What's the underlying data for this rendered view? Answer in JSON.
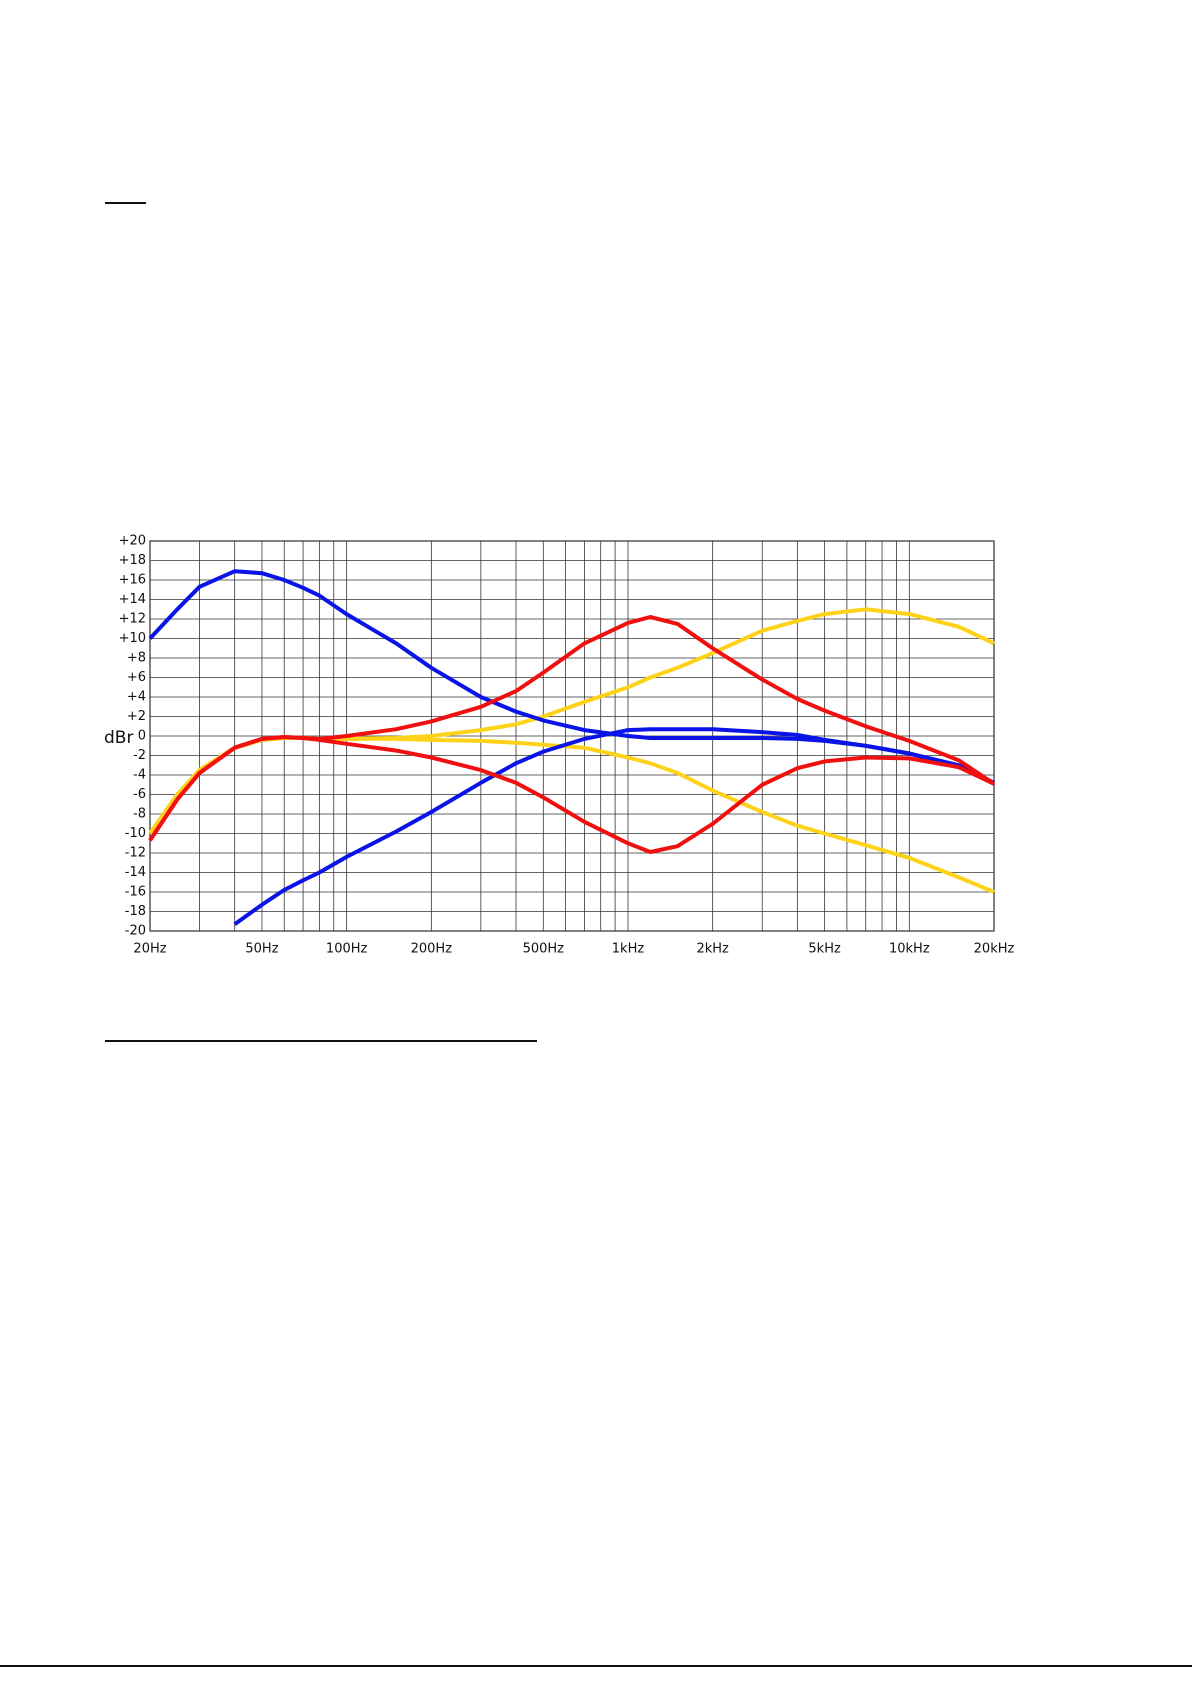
{
  "chart_data": {
    "type": "line",
    "ylabel": "dBr",
    "xscale": "log",
    "grid": true,
    "xlim": [
      20,
      20000
    ],
    "ylim": [
      -20,
      20
    ],
    "xticks": [
      {
        "value": 20,
        "label": "20Hz"
      },
      {
        "value": 50,
        "label": "50Hz"
      },
      {
        "value": 100,
        "label": "100Hz"
      },
      {
        "value": 200,
        "label": "200Hz"
      },
      {
        "value": 500,
        "label": "500Hz"
      },
      {
        "value": 1000,
        "label": "1kHz"
      },
      {
        "value": 2000,
        "label": "2kHz"
      },
      {
        "value": 5000,
        "label": "5kHz"
      },
      {
        "value": 10000,
        "label": "10kHz"
      },
      {
        "value": 20000,
        "label": "20kHz"
      }
    ],
    "xminor": [
      30,
      40,
      60,
      70,
      80,
      90,
      300,
      400,
      600,
      700,
      800,
      900,
      3000,
      4000,
      6000,
      7000,
      8000,
      9000
    ],
    "yticks": [
      {
        "value": 20,
        "label": "+20"
      },
      {
        "value": 18,
        "label": "+18"
      },
      {
        "value": 16,
        "label": "+16"
      },
      {
        "value": 14,
        "label": "+14"
      },
      {
        "value": 12,
        "label": "+12"
      },
      {
        "value": 10,
        "label": "+10"
      },
      {
        "value": 8,
        "label": "+8"
      },
      {
        "value": 6,
        "label": "+6"
      },
      {
        "value": 4,
        "label": "+4"
      },
      {
        "value": 2,
        "label": "+2"
      },
      0,
      -2,
      -4,
      -6,
      -8,
      -10,
      -12,
      -14,
      -16,
      -18,
      -20
    ],
    "x": [
      20,
      25,
      30,
      40,
      50,
      60,
      70,
      80,
      100,
      150,
      200,
      300,
      400,
      500,
      700,
      1000,
      1200,
      1500,
      2000,
      3000,
      4000,
      5000,
      7000,
      10000,
      15000,
      20000
    ],
    "series": [
      {
        "color": "#ffd21a",
        "values": [
          -10,
          -6,
          -3.5,
          -1.2,
          -0.4,
          -0.2,
          -0.2,
          -0.3,
          -0.3,
          -0.2,
          0,
          0.6,
          1.2,
          2,
          3.5,
          5,
          6,
          7,
          8.5,
          10.8,
          11.8,
          12.5,
          13,
          12.5,
          11.2,
          9.5
        ]
      },
      {
        "color": "#ffd21a",
        "values": [
          -10,
          -6,
          -3.5,
          -1.2,
          -0.4,
          -0.2,
          -0.2,
          -0.3,
          -0.3,
          -0.3,
          -0.4,
          -0.5,
          -0.7,
          -0.9,
          -1.2,
          -2.2,
          -2.8,
          -3.8,
          -5.6,
          -7.8,
          -9.2,
          -10,
          -11.2,
          -12.5,
          -14.5,
          -16
        ]
      },
      {
        "color": "#0a14e6",
        "values": [
          10,
          13,
          15.3,
          16.9,
          16.7,
          16,
          15.2,
          14.4,
          12.5,
          9.5,
          7,
          4,
          2.5,
          1.6,
          0.6,
          0,
          -0.2,
          -0.2,
          -0.2,
          -0.2,
          -0.3,
          -0.5,
          -1,
          -1.8,
          -3,
          -4.8
        ]
      },
      {
        "color": "#0a14e6",
        "values": [
          null,
          null,
          null,
          -19.3,
          -17.3,
          -15.8,
          -14.8,
          -14,
          -12.4,
          -9.8,
          -7.8,
          -4.8,
          -2.8,
          -1.6,
          -0.3,
          0.6,
          0.7,
          0.7,
          0.7,
          0.4,
          0.1,
          -0.4,
          -1,
          -1.8,
          -3.2,
          -4.8
        ]
      },
      {
        "color": "#f01010",
        "values": [
          -10.7,
          -6.5,
          -3.8,
          -1.2,
          -0.3,
          -0.1,
          -0.2,
          -0.3,
          0,
          0.7,
          1.5,
          3,
          4.6,
          6.5,
          9.5,
          11.6,
          12.2,
          11.5,
          9,
          5.8,
          3.8,
          2.6,
          1,
          -0.5,
          -2.5,
          -4.9
        ]
      },
      {
        "color": "#f01010",
        "values": [
          -10.7,
          -6.5,
          -3.8,
          -1.2,
          -0.3,
          -0.1,
          -0.2,
          -0.4,
          -0.8,
          -1.5,
          -2.2,
          -3.5,
          -4.8,
          -6.3,
          -8.8,
          -11,
          -11.9,
          -11.3,
          -9,
          -5,
          -3.3,
          -2.6,
          -2.2,
          -2.3,
          -3.2,
          -4.9
        ]
      }
    ]
  }
}
